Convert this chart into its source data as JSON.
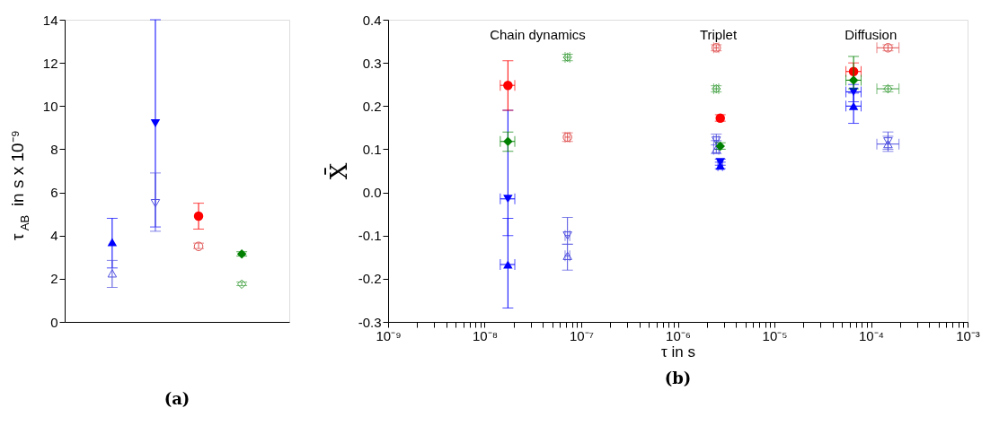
{
  "chart_data": [
    {
      "type": "scatter",
      "title": "(a)",
      "ylabel": "τ$_{AB}$ in s x 10⁻⁹",
      "categories": [
        null,
        null,
        null,
        null
      ],
      "ylim": [
        0,
        14
      ],
      "yticks": [
        0,
        2,
        4,
        6,
        8,
        10,
        12,
        14
      ],
      "tick_labels": "y",
      "grid": false,
      "legend": false,
      "series": [
        {
          "color": "#0000ff",
          "marker": "triangle-up",
          "values": [
            3.7,
            null,
            null,
            null
          ],
          "errors": [
            [
              2.5,
              4.8
            ],
            null,
            null,
            null
          ]
        },
        {
          "color": "#5050e0",
          "marker": "triangle-up-open",
          "values": [
            2.25,
            null,
            null,
            null
          ],
          "errors": [
            [
              1.6,
              2.85
            ],
            null,
            null,
            null
          ]
        },
        {
          "color": "#0000ff",
          "marker": "triangle-down",
          "values": [
            null,
            9.2,
            null,
            null
          ],
          "errors": [
            null,
            [
              4.4,
              14
            ],
            null,
            null
          ]
        },
        {
          "color": "#5050e0",
          "marker": "triangle-down-open",
          "values": [
            null,
            5.5,
            null,
            null
          ],
          "errors": [
            null,
            [
              4.2,
              6.9
            ],
            null,
            null
          ]
        },
        {
          "color": "#ff0000",
          "marker": "circle",
          "values": [
            null,
            null,
            4.9,
            null
          ],
          "errors": [
            null,
            null,
            [
              4.3,
              5.5
            ],
            null
          ]
        },
        {
          "color": "#e05050",
          "marker": "circle-open",
          "values": [
            null,
            null,
            3.5,
            null
          ],
          "errors": [
            null,
            null,
            [
              3.4,
              3.65
            ],
            null
          ]
        },
        {
          "color": "#008000",
          "marker": "diamond",
          "values": [
            null,
            null,
            null,
            3.15
          ],
          "errors": [
            null,
            null,
            null,
            [
              3.05,
              3.25
            ]
          ]
        },
        {
          "color": "#40a040",
          "marker": "diamond-open",
          "values": [
            null,
            null,
            null,
            1.75
          ],
          "errors": [
            null,
            null,
            null,
            [
              1.68,
              1.85
            ]
          ]
        }
      ]
    },
    {
      "type": "scatter",
      "title": "(b)",
      "xlabel": "τ in s",
      "ylabel": "X̄",
      "log": "x",
      "xlim": [
        1e-09,
        0.001
      ],
      "ylim": [
        -0.3,
        0.4
      ],
      "grid": false,
      "legend": false,
      "xticks": [
        {
          "value": 1e-09,
          "label": "10⁻⁹"
        },
        {
          "value": 2e-09,
          "label": null
        },
        {
          "value": 3e-09,
          "label": null
        },
        {
          "value": 4e-09,
          "label": null
        },
        {
          "value": 5e-09,
          "label": null
        },
        {
          "value": 6e-09,
          "label": null
        },
        {
          "value": 7e-09,
          "label": null
        },
        {
          "value": 8e-09,
          "label": null
        },
        {
          "value": 9e-09,
          "label": null
        },
        {
          "value": 1e-08,
          "label": "10⁻⁸"
        },
        {
          "value": 2e-08,
          "label": null
        },
        {
          "value": 3e-08,
          "label": null
        },
        {
          "value": 4e-08,
          "label": null
        },
        {
          "value": 5e-08,
          "label": null
        },
        {
          "value": 6e-08,
          "label": null
        },
        {
          "value": 7e-08,
          "label": null
        },
        {
          "value": 8e-08,
          "label": null
        },
        {
          "value": 9e-08,
          "label": null
        },
        {
          "value": 1e-07,
          "label": "10⁻⁷"
        },
        {
          "value": 2e-07,
          "label": null
        },
        {
          "value": 3e-07,
          "label": null
        },
        {
          "value": 4e-07,
          "label": null
        },
        {
          "value": 5e-07,
          "label": null
        },
        {
          "value": 6e-07,
          "label": null
        },
        {
          "value": 7e-07,
          "label": null
        },
        {
          "value": 8e-07,
          "label": null
        },
        {
          "value": 9e-07,
          "label": null
        },
        {
          "value": 1e-06,
          "label": "10⁻⁶"
        },
        {
          "value": 2e-06,
          "label": null
        },
        {
          "value": 3e-06,
          "label": null
        },
        {
          "value": 4e-06,
          "label": null
        },
        {
          "value": 5e-06,
          "label": null
        },
        {
          "value": 6e-06,
          "label": null
        },
        {
          "value": 7e-06,
          "label": null
        },
        {
          "value": 8e-06,
          "label": null
        },
        {
          "value": 9e-06,
          "label": null
        },
        {
          "value": 1e-05,
          "label": "10⁻⁵"
        },
        {
          "value": 2e-05,
          "label": null
        },
        {
          "value": 3e-05,
          "label": null
        },
        {
          "value": 4e-05,
          "label": null
        },
        {
          "value": 5e-05,
          "label": null
        },
        {
          "value": 6e-05,
          "label": null
        },
        {
          "value": 7e-05,
          "label": null
        },
        {
          "value": 8e-05,
          "label": null
        },
        {
          "value": 9e-05,
          "label": null
        },
        {
          "value": 0.0001,
          "label": "10⁻⁴"
        },
        {
          "value": 0.0002,
          "label": null
        },
        {
          "value": 0.0003,
          "label": null
        },
        {
          "value": 0.0004,
          "label": null
        },
        {
          "value": 0.0005,
          "label": null
        },
        {
          "value": 0.0006,
          "label": null
        },
        {
          "value": 0.0007,
          "label": null
        },
        {
          "value": 0.0008,
          "label": null
        },
        {
          "value": 0.0009,
          "label": null
        },
        {
          "value": 0.001,
          "label": "10⁻³"
        }
      ],
      "yticks": [
        -0.3,
        -0.2,
        -0.1,
        {
          "value": 0,
          "label": "0.0"
        },
        0.1,
        0.2,
        0.3,
        0.4
      ],
      "annotations": [
        "Chain dynamics",
        "Triplet",
        "Diffusion"
      ],
      "series": [
        {
          "color": "#0000ff",
          "marker": "triangle-up",
          "x": [
            1.74e-08,
            2.75e-06,
            6.6e-05
          ],
          "values": [
            -0.167,
            0.062,
            0.2
          ],
          "errors": [
            [
              -0.268,
              -0.06
            ],
            [
              0.055,
              0.07
            ],
            [
              0.16,
              0.23
            ]
          ],
          "xerrors": [
            [
              1.45e-08,
              2.05e-08
            ],
            [
              2.6e-06,
              2.9e-06
            ],
            [
              5.5e-05,
              7.9e-05
            ]
          ]
        },
        {
          "color": "#5050e0",
          "marker": "triangle-up-open",
          "x": [
            7.2e-08,
            2.5e-06,
            0.00015
          ],
          "values": [
            -0.147,
            0.1,
            0.112
          ],
          "errors": [
            [
              -0.18,
              -0.12
            ],
            [
              0.09,
              0.12
            ],
            [
              0.095,
              0.13
            ]
          ],
          "xerrors": [
            [
              6.8e-08,
              7.6e-08
            ],
            [
              2.35e-06,
              2.65e-06
            ],
            [
              0.000115,
              0.000195
            ]
          ]
        },
        {
          "color": "#0000ff",
          "marker": "triangle-down",
          "x": [
            1.74e-08,
            2.75e-06,
            6.6e-05
          ],
          "values": [
            -0.015,
            0.07,
            0.233
          ],
          "errors": [
            [
              -0.1,
              0.19
            ],
            [
              0.063,
              0.077
            ],
            [
              0.21,
              0.25
            ]
          ],
          "xerrors": [
            [
              1.45e-08,
              2.05e-08
            ],
            null,
            [
              5.5e-05,
              7.9e-05
            ]
          ]
        },
        {
          "color": "#5050e0",
          "marker": "triangle-down-open",
          "x": [
            7.2e-08,
            2.5e-06,
            0.00015
          ],
          "values": [
            -0.1,
            0.12,
            0.118
          ],
          "errors": [
            [
              -0.12,
              -0.058
            ],
            [
              0.11,
              0.135
            ],
            [
              0.1,
              0.14
            ]
          ],
          "xerrors": [
            [
              6.8e-08,
              7.6e-08
            ],
            [
              2.35e-06,
              2.65e-06
            ],
            null
          ]
        },
        {
          "color": "#ff0000",
          "marker": "circle",
          "x": [
            1.74e-08,
            2.75e-06,
            6.6e-05
          ],
          "values": [
            0.248,
            0.172,
            0.28
          ],
          "errors": [
            [
              0.19,
              0.305
            ],
            [
              0.165,
              0.18
            ],
            [
              0.26,
              0.3
            ]
          ],
          "xerrors": [
            [
              1.45e-08,
              2.05e-08
            ],
            null,
            [
              5.5e-05,
              7.9e-05
            ]
          ]
        },
        {
          "color": "#e05050",
          "marker": "circle-open",
          "x": [
            7.2e-08,
            2.5e-06,
            0.00015
          ],
          "values": [
            0.128,
            0.335,
            0.335
          ],
          "errors": [
            [
              0.118,
              0.138
            ],
            [
              0.328,
              0.342
            ],
            [
              0.328,
              0.342
            ]
          ],
          "xerrors": [
            [
              6.8e-08,
              7.6e-08
            ],
            [
              2.35e-06,
              2.65e-06
            ],
            [
              0.000115,
              0.000195
            ]
          ]
        },
        {
          "color": "#008000",
          "marker": "diamond",
          "x": [
            1.74e-08,
            2.75e-06,
            6.6e-05
          ],
          "values": [
            0.118,
            0.107,
            0.26
          ],
          "errors": [
            [
              0.095,
              0.14
            ],
            [
              0.1,
              0.115
            ],
            [
              0.24,
              0.315
            ]
          ],
          "xerrors": [
            [
              1.45e-08,
              2.05e-08
            ],
            null,
            [
              5.5e-05,
              7.9e-05
            ]
          ]
        },
        {
          "color": "#40a040",
          "marker": "diamond-open",
          "x": [
            7.2e-08,
            2.5e-06,
            0.00015
          ],
          "values": [
            0.313,
            0.24,
            0.24
          ],
          "errors": [
            [
              0.305,
              0.32
            ],
            [
              0.233,
              0.247
            ],
            [
              0.233,
              0.247
            ]
          ],
          "xerrors": [
            [
              6.8e-08,
              7.6e-08
            ],
            [
              2.35e-06,
              2.65e-06
            ],
            [
              0.000115,
              0.000195
            ]
          ]
        }
      ]
    }
  ]
}
